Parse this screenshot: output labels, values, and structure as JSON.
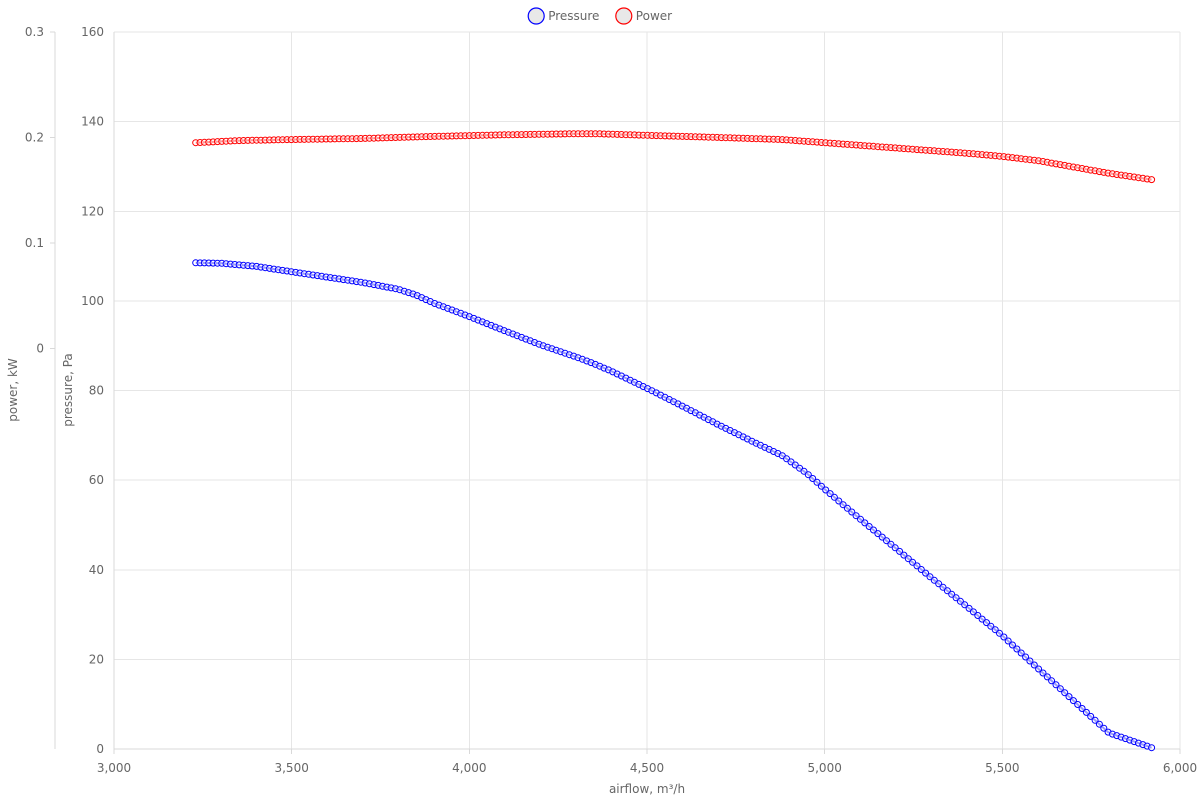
{
  "chart_data": {
    "type": "line",
    "legend": {
      "position": "top-center"
    },
    "series": [
      {
        "name": "Pressure",
        "color": "#0000ff",
        "axis": "pressure",
        "points": [
          [
            3230,
            108.5
          ],
          [
            3300,
            108.4
          ],
          [
            3400,
            107.7
          ],
          [
            3500,
            106.5
          ],
          [
            3600,
            105.3
          ],
          [
            3700,
            104.1
          ],
          [
            3800,
            102.6
          ],
          [
            3850,
            101.3
          ],
          [
            3900,
            99.5
          ],
          [
            4000,
            96.5
          ],
          [
            4100,
            93.3
          ],
          [
            4200,
            90.2
          ],
          [
            4300,
            87.5
          ],
          [
            4350,
            86.0
          ],
          [
            4400,
            84.3
          ],
          [
            4500,
            80.5
          ],
          [
            4600,
            76.5
          ],
          [
            4700,
            72.4
          ],
          [
            4800,
            68.5
          ],
          [
            4880,
            65.5
          ],
          [
            4950,
            61.5
          ],
          [
            5000,
            58.0
          ],
          [
            5100,
            51.3
          ],
          [
            5200,
            44.8
          ],
          [
            5300,
            38.2
          ],
          [
            5400,
            31.8
          ],
          [
            5500,
            25.3
          ],
          [
            5600,
            18.0
          ],
          [
            5700,
            10.8
          ],
          [
            5800,
            3.6
          ],
          [
            5920,
            0.3
          ]
        ]
      },
      {
        "name": "Power",
        "color": "#ff0000",
        "axis": "power",
        "points": [
          [
            3230,
            0.195
          ],
          [
            3350,
            0.197
          ],
          [
            3500,
            0.198
          ],
          [
            3700,
            0.199
          ],
          [
            3900,
            0.201
          ],
          [
            4100,
            0.2025
          ],
          [
            4300,
            0.2035
          ],
          [
            4360,
            0.2035
          ],
          [
            4500,
            0.202
          ],
          [
            4700,
            0.2
          ],
          [
            4880,
            0.198
          ],
          [
            5000,
            0.195
          ],
          [
            5200,
            0.19
          ],
          [
            5400,
            0.185
          ],
          [
            5500,
            0.182
          ],
          [
            5600,
            0.178
          ],
          [
            5700,
            0.172
          ],
          [
            5800,
            0.166
          ],
          [
            5920,
            0.16
          ]
        ]
      }
    ],
    "x_axis": {
      "label": "airflow, m³/h",
      "range": [
        3000,
        6000
      ],
      "ticks": [
        3000,
        3500,
        4000,
        4500,
        5000,
        5500,
        6000
      ],
      "tick_labels": [
        "3,000",
        "3,500",
        "4,000",
        "4,500",
        "5,000",
        "5,500",
        "6,000"
      ]
    },
    "y_axes": {
      "pressure": {
        "label": "pressure, Pa",
        "range": [
          0,
          160
        ],
        "ticks": [
          0,
          20,
          40,
          60,
          80,
          100,
          120,
          140,
          160
        ],
        "tick_labels": [
          "0",
          "20",
          "40",
          "60",
          "80",
          "100",
          "120",
          "140",
          "160"
        ]
      },
      "power": {
        "label": "power, kW",
        "range": [
          -0.38,
          0.3
        ],
        "ticks": [
          0,
          0.1,
          0.2,
          0.3
        ],
        "tick_labels": [
          "0",
          "0.1",
          "0.2",
          "0.3"
        ]
      }
    },
    "grid": true
  }
}
